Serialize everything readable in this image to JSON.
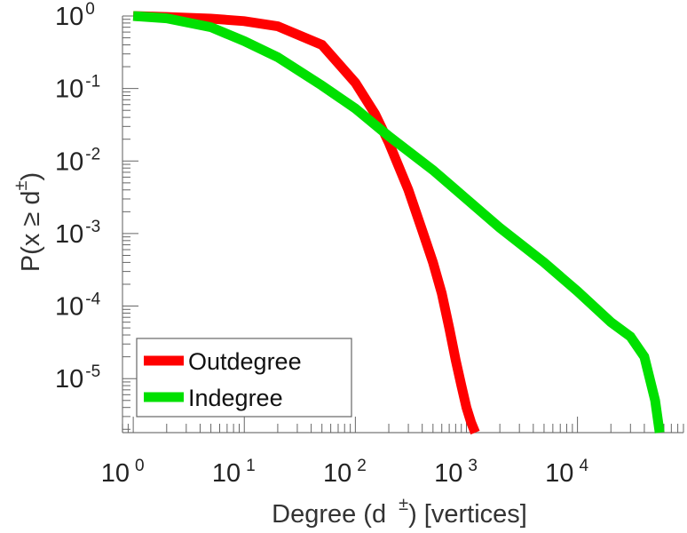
{
  "chart_data": {
    "type": "line",
    "xscale": "log",
    "yscale": "log",
    "xlim": [
      0.8,
      90000
    ],
    "ylim": [
      1.8e-06,
      1.0
    ],
    "xticks": [
      {
        "base": "10",
        "exp": "0",
        "value": 1
      },
      {
        "base": "10",
        "exp": "1",
        "value": 10
      },
      {
        "base": "10",
        "exp": "2",
        "value": 100
      },
      {
        "base": "10",
        "exp": "3",
        "value": 1000
      },
      {
        "base": "10",
        "exp": "4",
        "value": 10000
      }
    ],
    "yticks": [
      {
        "base": "10",
        "exp": "0",
        "value": 1
      },
      {
        "base": "10",
        "exp": "-1",
        "value": 0.1
      },
      {
        "base": "10",
        "exp": "-2",
        "value": 0.01
      },
      {
        "base": "10",
        "exp": "-3",
        "value": 0.001
      },
      {
        "base": "10",
        "exp": "-4",
        "value": 0.0001
      },
      {
        "base": "10",
        "exp": "-5",
        "value": 1e-05
      }
    ],
    "xlabel": {
      "main": "Degree (d",
      "sup": "±",
      "tail": ") [vertices]"
    },
    "ylabel": {
      "main": "P(x ≥ d",
      "sup": "±",
      "tail": ")"
    },
    "legend_position": "bottom-left",
    "series": [
      {
        "name": "Outdegree",
        "color": "#ff0000",
        "points": [
          [
            1,
            1.0
          ],
          [
            2,
            0.97
          ],
          [
            5,
            0.92
          ],
          [
            10,
            0.85
          ],
          [
            20,
            0.72
          ],
          [
            50,
            0.4
          ],
          [
            100,
            0.12
          ],
          [
            150,
            0.045
          ],
          [
            200,
            0.018
          ],
          [
            300,
            0.004
          ],
          [
            400,
            0.0011
          ],
          [
            500,
            0.0004
          ],
          [
            600,
            0.00015
          ],
          [
            700,
            5e-05
          ],
          [
            800,
            1.8e-05
          ],
          [
            900,
            8e-06
          ],
          [
            1000,
            4e-06
          ],
          [
            1100,
            2.5e-06
          ],
          [
            1200,
            1.8e-06
          ]
        ]
      },
      {
        "name": "Indegree",
        "color": "#00e000",
        "points": [
          [
            1,
            1.0
          ],
          [
            2,
            0.93
          ],
          [
            5,
            0.7
          ],
          [
            10,
            0.45
          ],
          [
            20,
            0.27
          ],
          [
            50,
            0.11
          ],
          [
            100,
            0.053
          ],
          [
            200,
            0.022
          ],
          [
            500,
            0.0075
          ],
          [
            1000,
            0.003
          ],
          [
            2000,
            0.0012
          ],
          [
            5000,
            0.0004
          ],
          [
            10000,
            0.00016
          ],
          [
            20000,
            6e-05
          ],
          [
            30000,
            3.8e-05
          ],
          [
            40000,
            2e-05
          ],
          [
            50000,
            5e-06
          ],
          [
            55000,
            1.8e-06
          ]
        ]
      }
    ]
  }
}
